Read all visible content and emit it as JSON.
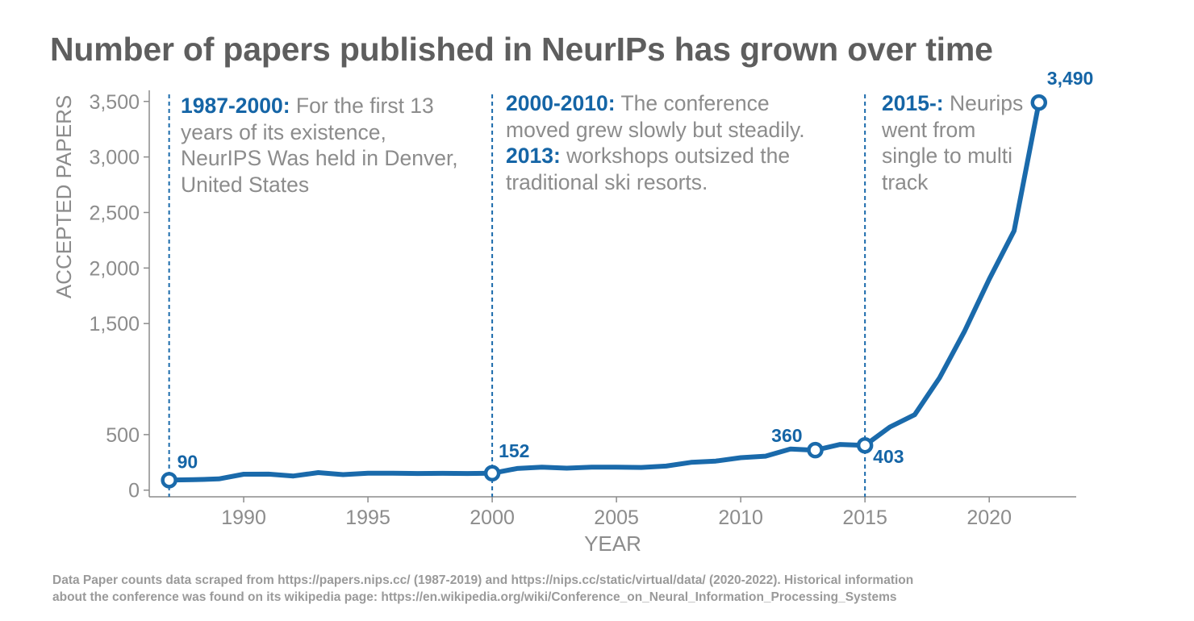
{
  "title": "Number of papers published in NeurIPs has grown over time",
  "colors": {
    "line": "#1a6aab",
    "label": "#1565a6",
    "axis": "#8c8c8c",
    "text": "#8c8c8c",
    "title": "#5e5e5e"
  },
  "chart_data": {
    "type": "line",
    "xlabel": "YEAR",
    "ylabel": "ACCEPTED PAPERS",
    "xlim": [
      1986.2,
      2023.5
    ],
    "ylim": [
      -60,
      3600
    ],
    "xticks": [
      1990,
      1995,
      2000,
      2005,
      2010,
      2015,
      2020
    ],
    "xtick_labels": [
      "1990",
      "1995",
      "2000",
      "2005",
      "2010",
      "2015",
      "2020"
    ],
    "yticks": [
      0,
      500,
      1500,
      2000,
      2500,
      3000,
      3500
    ],
    "ytick_labels": [
      "0",
      "500",
      "1,500",
      "2,000",
      "2,500",
      "3,000",
      "3,500"
    ],
    "grid": false,
    "series": [
      {
        "x": [
          1987,
          1988,
          1989,
          1990,
          1991,
          1992,
          1993,
          1994,
          1995,
          1996,
          1997,
          1998,
          1999,
          2000,
          2001,
          2002,
          2003,
          2004,
          2005,
          2006,
          2007,
          2008,
          2009,
          2010,
          2011,
          2012,
          2013,
          2014,
          2015,
          2016,
          2017,
          2018,
          2019,
          2020,
          2021,
          2022
        ],
        "y": [
          90,
          94,
          101,
          143,
          144,
          127,
          158,
          140,
          152,
          152,
          150,
          151,
          150,
          152,
          195,
          207,
          198,
          207,
          207,
          204,
          217,
          250,
          262,
          292,
          306,
          370,
          360,
          411,
          403,
          568,
          679,
          1011,
          1428,
          1900,
          2334,
          3490
        ]
      }
    ],
    "markers": [
      {
        "x": 1987,
        "y": 90,
        "label": "90"
      },
      {
        "x": 2000,
        "y": 152,
        "label": "152"
      },
      {
        "x": 2013,
        "y": 360,
        "label": "360"
      },
      {
        "x": 2015,
        "y": 403,
        "label": "403"
      },
      {
        "x": 2022,
        "y": 3490,
        "label": "3,490"
      }
    ],
    "vlines": [
      1987,
      2000,
      2015
    ],
    "annotations": [
      {
        "id": "1987",
        "lines": [
          {
            "bold": "1987-2000:",
            "text": " For the first 13"
          },
          {
            "bold": "",
            "text": "years of its existence,"
          },
          {
            "bold": "",
            "text": "NeurIPS Was held in Denver,"
          },
          {
            "bold": "",
            "text": "United States"
          }
        ]
      },
      {
        "id": "2000",
        "lines": [
          {
            "bold": "2000-2010:",
            "text": " The conference"
          },
          {
            "bold": "",
            "text": "moved grew slowly but steadily."
          },
          {
            "bold": "2013:",
            "text": " workshops outsized the"
          },
          {
            "bold": "",
            "text": "traditional ski resorts."
          }
        ]
      },
      {
        "id": "2015",
        "lines": [
          {
            "bold": "2015-:",
            "text": " Neurips"
          },
          {
            "bold": "",
            "text": "went from"
          },
          {
            "bold": "",
            "text": "single to multi"
          },
          {
            "bold": "",
            "text": "track"
          }
        ]
      }
    ]
  },
  "source": {
    "line1": "Data Paper counts data scraped from https://papers.nips.cc/ (1987-2019) and https://nips.cc/static/virtual/data/ (2020-2022). Historical information",
    "line2": "about the conference was found on its wikipedia page: https://en.wikipedia.org/wiki/Conference_on_Neural_Information_Processing_Systems"
  }
}
